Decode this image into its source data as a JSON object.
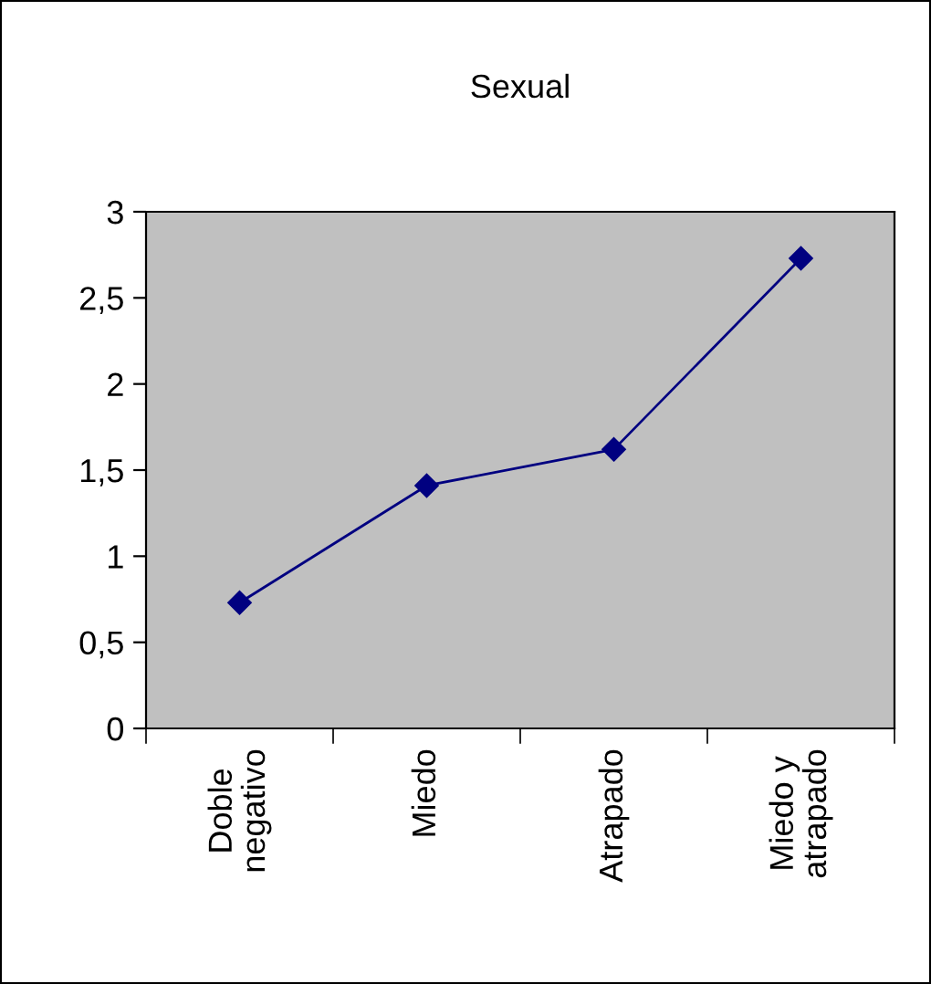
{
  "chart_data": {
    "type": "line",
    "title": "Sexual",
    "categories": [
      "Doble\nnegativo",
      "Miedo",
      "Atrapado",
      "Miedo y\natrapado"
    ],
    "series": [
      {
        "color": "#000080",
        "values": [
          0.73,
          1.41,
          1.62,
          2.73
        ]
      }
    ],
    "ylim": [
      0,
      3
    ],
    "yticks": [
      0,
      {
        "value": 0.5,
        "label": "0,5"
      },
      1,
      {
        "value": 1.5,
        "label": "1,5"
      },
      2,
      {
        "value": 2.5,
        "label": "2,5"
      },
      3
    ],
    "marker": "diamond",
    "line_style": "solid",
    "grid": false,
    "legend": false
  }
}
